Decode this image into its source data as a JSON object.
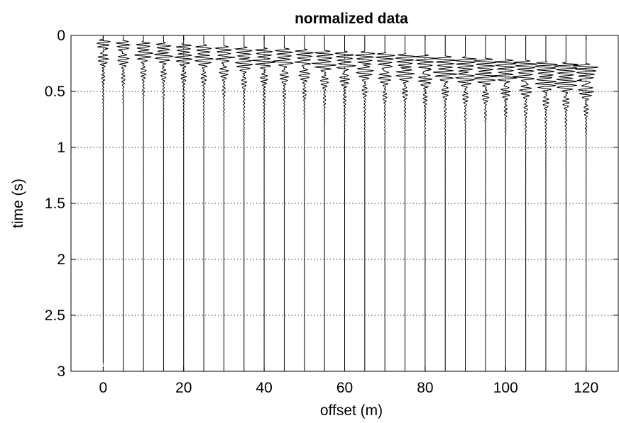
{
  "chart_data": {
    "type": "line",
    "subtype": "seismic-wiggle",
    "title": "normalized data",
    "xlabel": "offset (m)",
    "ylabel": "time (s)",
    "xlim": [
      -8,
      128
    ],
    "ylim": [
      3,
      0
    ],
    "y_reversed": true,
    "grid": true,
    "grid_style": "dotted",
    "xticks": [
      0,
      20,
      40,
      60,
      80,
      100,
      120
    ],
    "yticks": [
      0,
      0.5,
      1,
      1.5,
      2,
      2.5,
      3
    ],
    "ytick_labels": [
      "0",
      "0.5",
      "1",
      "1.5",
      "2",
      "2.5",
      "3"
    ],
    "trace_color": "#000000",
    "series": [
      {
        "offset": 0,
        "first_arrival_s": 0.05,
        "end_time_s": 2.93
      },
      {
        "offset": 5,
        "first_arrival_s": 0.06,
        "end_time_s": 3.0
      },
      {
        "offset": 10,
        "first_arrival_s": 0.07,
        "end_time_s": 3.0
      },
      {
        "offset": 15,
        "first_arrival_s": 0.08,
        "end_time_s": 3.0
      },
      {
        "offset": 20,
        "first_arrival_s": 0.09,
        "end_time_s": 3.0
      },
      {
        "offset": 25,
        "first_arrival_s": 0.1,
        "end_time_s": 3.0
      },
      {
        "offset": 30,
        "first_arrival_s": 0.11,
        "end_time_s": 3.0
      },
      {
        "offset": 35,
        "first_arrival_s": 0.12,
        "end_time_s": 3.0
      },
      {
        "offset": 40,
        "first_arrival_s": 0.13,
        "end_time_s": 3.0
      },
      {
        "offset": 45,
        "first_arrival_s": 0.13,
        "end_time_s": 3.0
      },
      {
        "offset": 50,
        "first_arrival_s": 0.14,
        "end_time_s": 3.0
      },
      {
        "offset": 55,
        "first_arrival_s": 0.15,
        "end_time_s": 3.0
      },
      {
        "offset": 60,
        "first_arrival_s": 0.16,
        "end_time_s": 3.0
      },
      {
        "offset": 65,
        "first_arrival_s": 0.16,
        "end_time_s": 3.0
      },
      {
        "offset": 70,
        "first_arrival_s": 0.17,
        "end_time_s": 3.0
      },
      {
        "offset": 75,
        "first_arrival_s": 0.18,
        "end_time_s": 3.0
      },
      {
        "offset": 80,
        "first_arrival_s": 0.19,
        "end_time_s": 3.0
      },
      {
        "offset": 85,
        "first_arrival_s": 0.2,
        "end_time_s": 3.0
      },
      {
        "offset": 90,
        "first_arrival_s": 0.21,
        "end_time_s": 3.0
      },
      {
        "offset": 95,
        "first_arrival_s": 0.22,
        "end_time_s": 3.0
      },
      {
        "offset": 100,
        "first_arrival_s": 0.23,
        "end_time_s": 3.0
      },
      {
        "offset": 105,
        "first_arrival_s": 0.24,
        "end_time_s": 3.0
      },
      {
        "offset": 110,
        "first_arrival_s": 0.25,
        "end_time_s": 3.0
      },
      {
        "offset": 115,
        "first_arrival_s": 0.26,
        "end_time_s": 3.0
      },
      {
        "offset": 120,
        "first_arrival_s": 0.27,
        "end_time_s": 3.0
      }
    ]
  }
}
